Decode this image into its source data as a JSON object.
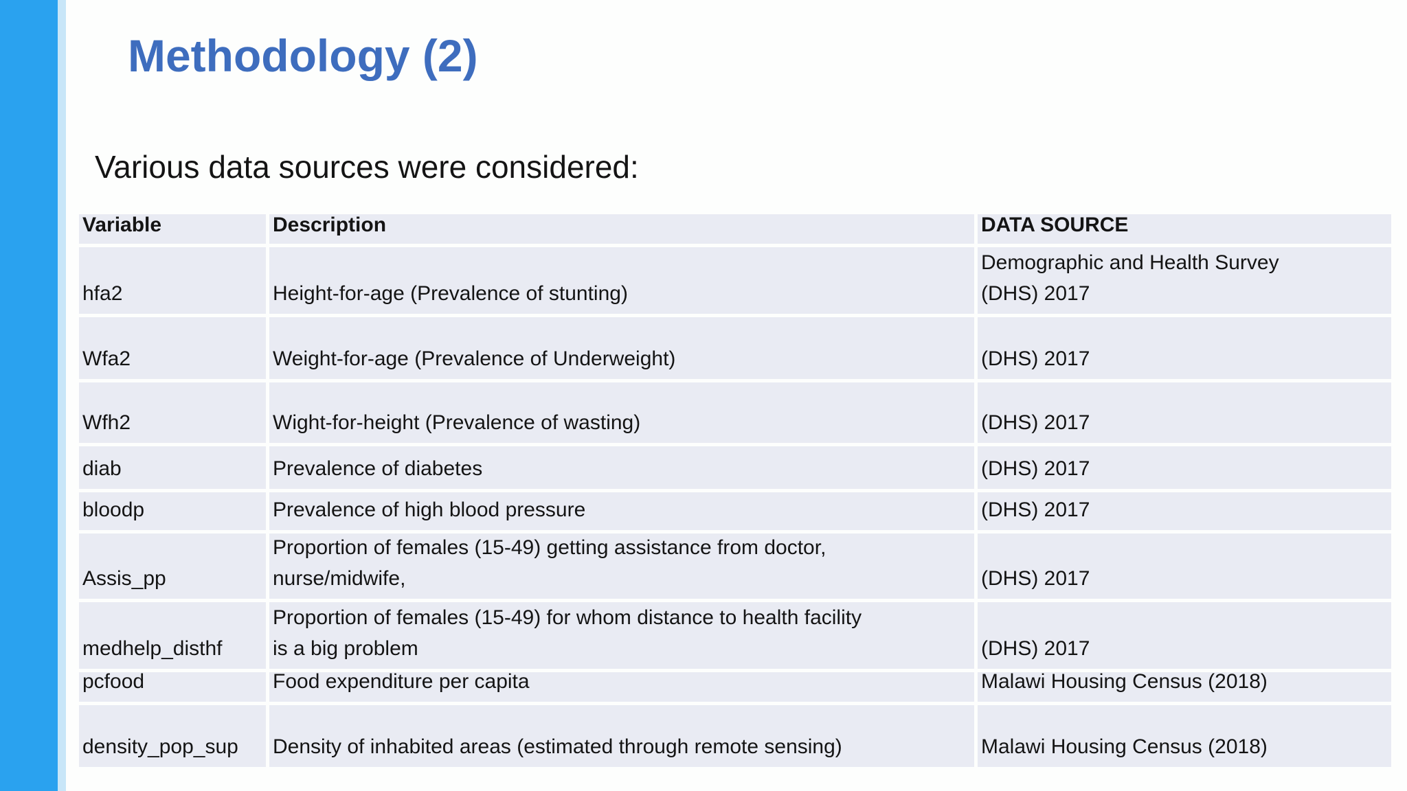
{
  "slide": {
    "title": "Methodology (2)",
    "subtitle": "Various data sources were considered:"
  },
  "colors": {
    "slide_bg": "#fdfefd",
    "accent_bar": "#2AA2EF",
    "accent_bar_edge": "#C8E6F8",
    "title_text": "#3E6DBE",
    "body_text": "#141414",
    "table_cell_bg": "#E9EBF3",
    "table_gridline": "#FFFFFF"
  },
  "table": {
    "columns": [
      "Variable",
      "Description",
      "DATA SOURCE"
    ],
    "rows": [
      [
        "hfa2",
        "Height-for-age (Prevalence of stunting)",
        "Demographic and Health Survey\n(DHS) 2017"
      ],
      [
        "Wfa2",
        "Weight-for-age (Prevalence of Underweight)",
        "(DHS) 2017"
      ],
      [
        "Wfh2",
        "Wight-for-height (Prevalence of wasting)",
        "(DHS) 2017"
      ],
      [
        "diab",
        "Prevalence of diabetes",
        "(DHS) 2017"
      ],
      [
        "bloodp",
        "Prevalence of high blood pressure",
        "(DHS) 2017"
      ],
      [
        "Assis_pp",
        "Proportion of females (15-49) getting assistance from doctor,\nnurse/midwife,",
        "(DHS) 2017"
      ],
      [
        "medhelp_disthf",
        "Proportion of females (15-49) for whom distance to health facility\nis a big problem",
        "(DHS) 2017"
      ],
      [
        "pcfood",
        "Food expenditure per capita",
        "Malawi Housing Census (2018)"
      ],
      [
        "density_pop_sup",
        "Density of inhabited areas (estimated through remote sensing)",
        "Malawi Housing Census (2018)"
      ]
    ]
  }
}
